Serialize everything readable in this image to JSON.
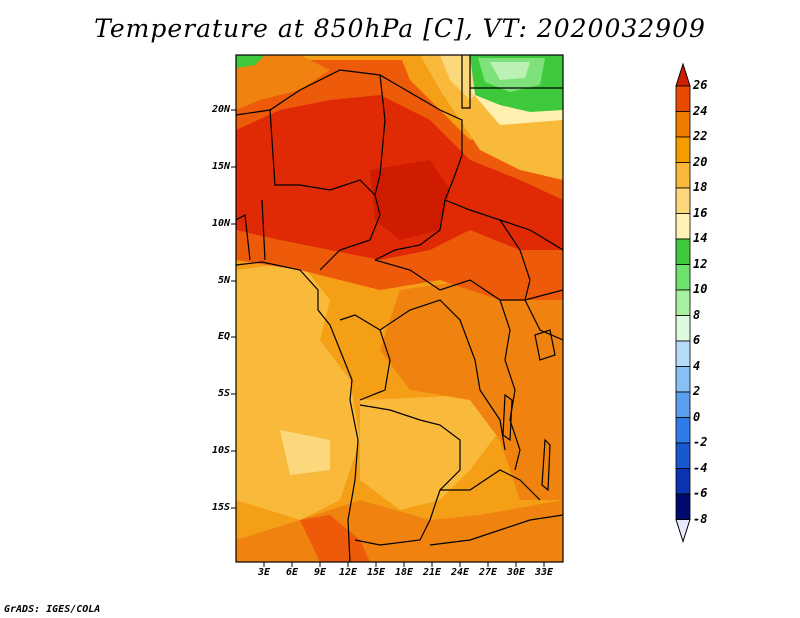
{
  "title": "Temperature at 850hPa [C], VT: 2020032909",
  "credit": "GrADS: IGES/COLA",
  "axes": {
    "lat_labels": [
      "20N",
      "15N",
      "10N",
      "5N",
      "EQ",
      "5S",
      "10S",
      "15S"
    ],
    "lon_labels": [
      "3E",
      "6E",
      "9E",
      "12E",
      "15E",
      "18E",
      "21E",
      "24E",
      "27E",
      "30E",
      "33E"
    ]
  },
  "colorbar": {
    "labels": [
      "26",
      "24",
      "22",
      "20",
      "18",
      "16",
      "14",
      "12",
      "10",
      "8",
      "6",
      "4",
      "2",
      "0",
      "-2",
      "-4",
      "-6",
      "-8"
    ],
    "colors": [
      "#d01e00",
      "#e84a00",
      "#ef7a00",
      "#f59d00",
      "#f9b73b",
      "#fcd77a",
      "#fff2b2",
      "#3ec83c",
      "#6ee06c",
      "#a8f0a0",
      "#dff8e0",
      "#b4dcf8",
      "#86c0f4",
      "#5a9ef0",
      "#2f7ce8",
      "#1858d0",
      "#0c34b0",
      "#000a6e",
      "#e8e8ff"
    ]
  },
  "map_colors": {
    "c24": "#df2a05",
    "c22": "#ec5a0a",
    "c20": "#f08210",
    "c18": "#f59f16",
    "c16": "#f9b93a",
    "c14": "#fcd87c",
    "c12": "#fff0b0",
    "g10": "#3ec83c",
    "g8": "#7ee27a",
    "g6": "#bdf0b4"
  }
}
